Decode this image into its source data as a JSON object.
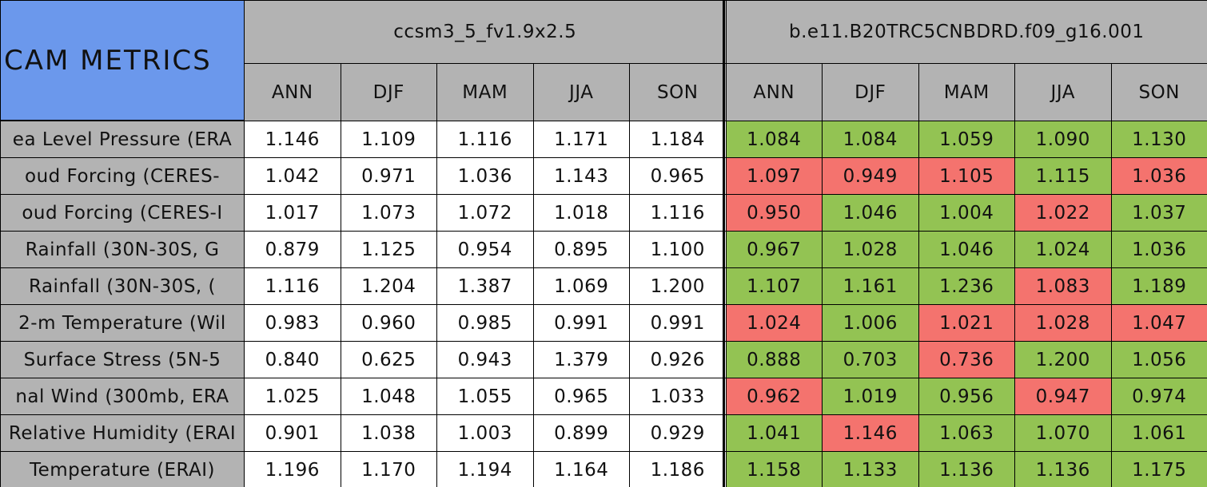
{
  "header": {
    "title": "CAM METRICS",
    "groups": [
      "ccsm3_5_fv1.9x2.5",
      "b.e11.B20TRC5CNBDRD.f09_g16.001"
    ],
    "seasons": [
      "ANN",
      "DJF",
      "MAM",
      "JJA",
      "SON"
    ],
    "colors": {
      "header": "#b3b3b3",
      "title": "#6b98ec",
      "label": "#b3b3b3",
      "plain": "#ffffff"
    }
  },
  "rows": [
    {
      "label": "ea Level Pressure (ERA",
      "values": [
        "1.146",
        "1.109",
        "1.116",
        "1.171",
        "1.184",
        "1.084",
        "1.084",
        "1.059",
        "1.090",
        "1.130"
      ],
      "colors": [
        "#93c353",
        "#93c353",
        "#93c353",
        "#93c353",
        "#93c353"
      ]
    },
    {
      "label": "oud Forcing (CERES-",
      "values": [
        "1.042",
        "0.971",
        "1.036",
        "1.143",
        "0.965",
        "1.097",
        "0.949",
        "1.105",
        "1.115",
        "1.036"
      ],
      "colors": [
        "#f4736e",
        "#f4736e",
        "#f4736e",
        "#93c353",
        "#f4736e"
      ]
    },
    {
      "label": "oud Forcing (CERES-I",
      "values": [
        "1.017",
        "1.073",
        "1.072",
        "1.018",
        "1.116",
        "0.950",
        "1.046",
        "1.004",
        "1.022",
        "1.037"
      ],
      "colors": [
        "#f4736e",
        "#93c353",
        "#93c353",
        "#f4736e",
        "#93c353"
      ]
    },
    {
      "label": "Rainfall (30N-30S, G",
      "values": [
        "0.879",
        "1.125",
        "0.954",
        "0.895",
        "1.100",
        "0.967",
        "1.028",
        "1.046",
        "1.024",
        "1.036"
      ],
      "colors": [
        "#93c353",
        "#93c353",
        "#93c353",
        "#93c353",
        "#93c353"
      ]
    },
    {
      "label": "Rainfall (30N-30S, (",
      "values": [
        "1.116",
        "1.204",
        "1.387",
        "1.069",
        "1.200",
        "1.107",
        "1.161",
        "1.236",
        "1.083",
        "1.189"
      ],
      "colors": [
        "#93c353",
        "#93c353",
        "#93c353",
        "#f4736e",
        "#93c353"
      ]
    },
    {
      "label": "2-m Temperature (Wil",
      "values": [
        "0.983",
        "0.960",
        "0.985",
        "0.991",
        "0.991",
        "1.024",
        "1.006",
        "1.021",
        "1.028",
        "1.047"
      ],
      "colors": [
        "#f4736e",
        "#93c353",
        "#f4736e",
        "#f4736e",
        "#f4736e"
      ]
    },
    {
      "label": "Surface Stress (5N-5",
      "values": [
        "0.840",
        "0.625",
        "0.943",
        "1.379",
        "0.926",
        "0.888",
        "0.703",
        "0.736",
        "1.200",
        "1.056"
      ],
      "colors": [
        "#93c353",
        "#93c353",
        "#f4736e",
        "#93c353",
        "#93c353"
      ]
    },
    {
      "label": "nal Wind (300mb, ERA",
      "values": [
        "1.025",
        "1.048",
        "1.055",
        "0.965",
        "1.033",
        "0.962",
        "1.019",
        "0.956",
        "0.947",
        "0.974"
      ],
      "colors": [
        "#f4736e",
        "#93c353",
        "#93c353",
        "#f4736e",
        "#93c353"
      ]
    },
    {
      "label": "Relative Humidity (ERAI",
      "values": [
        "0.901",
        "1.038",
        "1.003",
        "0.899",
        "0.929",
        "1.041",
        "1.146",
        "1.063",
        "1.070",
        "1.061"
      ],
      "colors": [
        "#93c353",
        "#f4736e",
        "#93c353",
        "#93c353",
        "#93c353"
      ]
    },
    {
      "label": "Temperature (ERAI)",
      "values": [
        "1.196",
        "1.170",
        "1.194",
        "1.164",
        "1.186",
        "1.158",
        "1.133",
        "1.136",
        "1.136",
        "1.175"
      ],
      "colors": [
        "#93c353",
        "#93c353",
        "#93c353",
        "#93c353",
        "#93c353"
      ]
    }
  ]
}
